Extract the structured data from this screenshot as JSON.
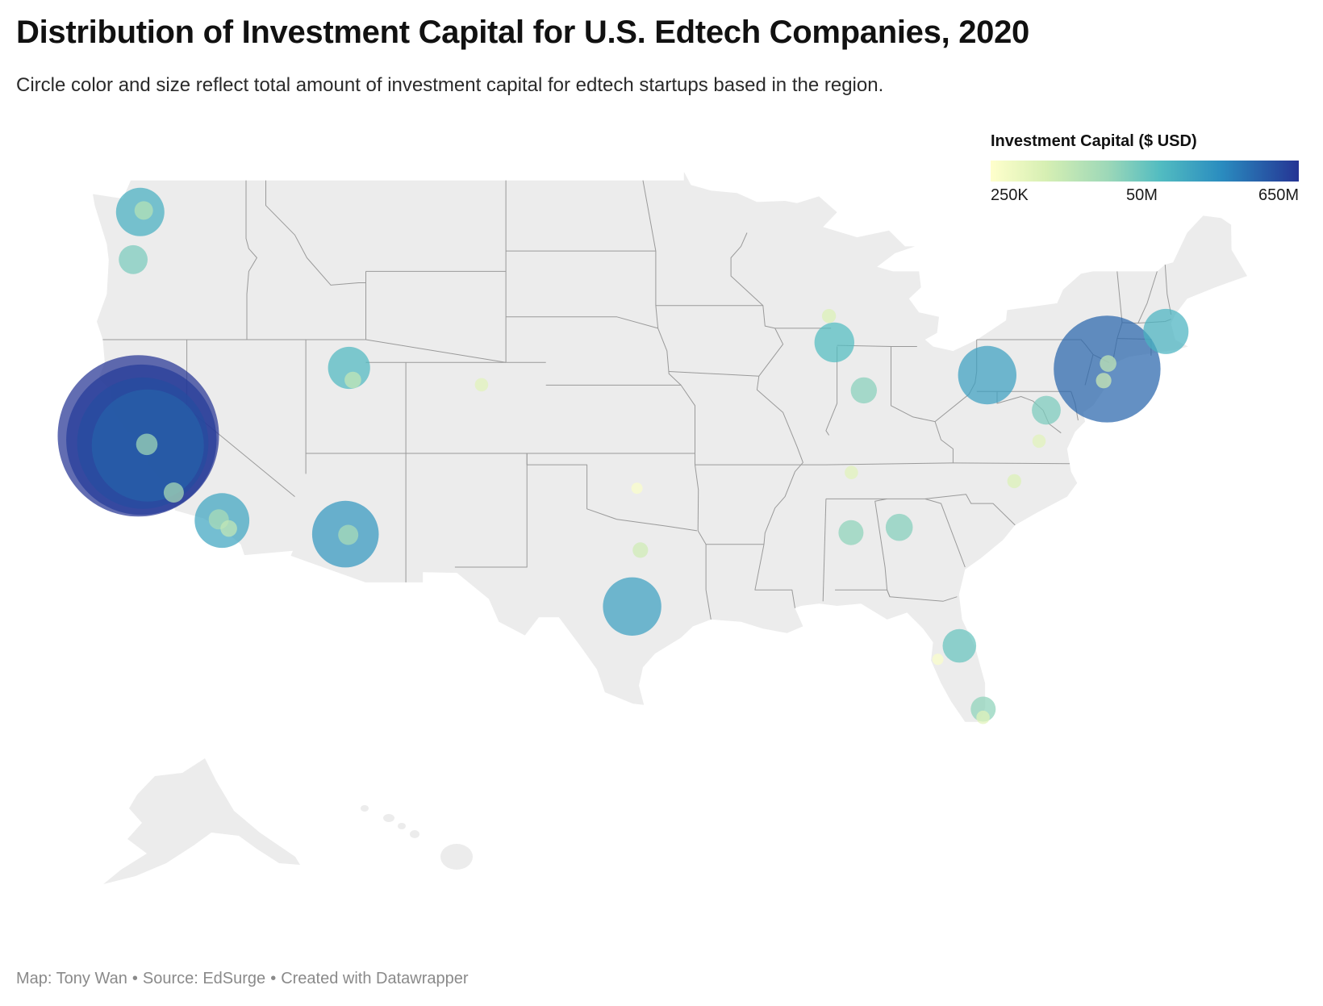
{
  "title": "Distribution of Investment Capital for U.S. Edtech Companies, 2020",
  "subtitle": "Circle color and size reflect total amount of investment capital for edtech startups based in the region.",
  "legend": {
    "title": "Investment Capital ($ USD)",
    "min_label": "250K",
    "mid_label": "50M",
    "max_label": "650M",
    "colors": [
      "#ffffcc",
      "#d6efb3",
      "#9dd8b8",
      "#52bcc1",
      "#2a8cbf",
      "#253494"
    ]
  },
  "footer": {
    "map_credit": "Map: Tony Wan",
    "source": "Source: EdSurge",
    "tool": "Created with Datawrapper"
  },
  "map": {
    "land_color": "#ececec",
    "border_color": "#9a9a9a",
    "regions": [
      {
        "lon": -122.33,
        "lat": 47.61,
        "capital_musd": 45
      },
      {
        "lon": -122.15,
        "lat": 47.68,
        "capital_musd": 3
      },
      {
        "lon": -122.68,
        "lat": 45.52,
        "capital_musd": 12
      },
      {
        "lon": -122.42,
        "lat": 37.77,
        "capital_musd": 650
      },
      {
        "lon": -122.27,
        "lat": 37.6,
        "capital_musd": 560
      },
      {
        "lon": -122.2,
        "lat": 37.45,
        "capital_musd": 420
      },
      {
        "lon": -121.95,
        "lat": 37.35,
        "capital_musd": 300
      },
      {
        "lon": -122.0,
        "lat": 37.4,
        "capital_musd": 5
      },
      {
        "lon": -120.65,
        "lat": 35.28,
        "capital_musd": 4
      },
      {
        "lon": -118.24,
        "lat": 34.05,
        "capital_musd": 60
      },
      {
        "lon": -118.4,
        "lat": 34.1,
        "capital_musd": 4
      },
      {
        "lon": -117.9,
        "lat": 33.7,
        "capital_musd": 2
      },
      {
        "lon": -112.07,
        "lat": 33.45,
        "capital_musd": 95
      },
      {
        "lon": -111.93,
        "lat": 33.42,
        "capital_musd": 4
      },
      {
        "lon": -111.89,
        "lat": 40.76,
        "capital_musd": 32
      },
      {
        "lon": -111.7,
        "lat": 40.23,
        "capital_musd": 2
      },
      {
        "lon": -105.27,
        "lat": 40.02,
        "capital_musd": 0.8
      },
      {
        "lon": -97.5,
        "lat": 35.47,
        "capital_musd": 0.3
      },
      {
        "lon": -97.33,
        "lat": 32.75,
        "capital_musd": 1.5
      },
      {
        "lon": -97.74,
        "lat": 30.27,
        "capital_musd": 70
      },
      {
        "lon": -87.63,
        "lat": 41.88,
        "capital_musd": 28
      },
      {
        "lon": -87.9,
        "lat": 43.04,
        "capital_musd": 1
      },
      {
        "lon": -86.16,
        "lat": 39.77,
        "capital_musd": 9
      },
      {
        "lon": -86.78,
        "lat": 36.16,
        "capital_musd": 0.8
      },
      {
        "lon": -86.8,
        "lat": 33.52,
        "capital_musd": 8
      },
      {
        "lon": -84.39,
        "lat": 33.75,
        "capital_musd": 10
      },
      {
        "lon": -79.99,
        "lat": 40.44,
        "capital_musd": 70
      },
      {
        "lon": -77.04,
        "lat": 38.9,
        "capital_musd": 12
      },
      {
        "lon": -77.4,
        "lat": 37.54,
        "capital_musd": 0.8
      },
      {
        "lon": -78.64,
        "lat": 35.78,
        "capital_musd": 1
      },
      {
        "lon": -74.0,
        "lat": 40.71,
        "capital_musd": 270
      },
      {
        "lon": -73.95,
        "lat": 40.95,
        "capital_musd": 2
      },
      {
        "lon": -74.17,
        "lat": 40.2,
        "capital_musd": 1.5
      },
      {
        "lon": -71.06,
        "lat": 42.36,
        "capital_musd": 38
      },
      {
        "lon": -81.38,
        "lat": 28.54,
        "capital_musd": 18
      },
      {
        "lon": -82.46,
        "lat": 27.95,
        "capital_musd": 0.3
      },
      {
        "lon": -80.19,
        "lat": 25.76,
        "capital_musd": 8
      },
      {
        "lon": -80.2,
        "lat": 25.4,
        "capital_musd": 0.8
      }
    ]
  }
}
